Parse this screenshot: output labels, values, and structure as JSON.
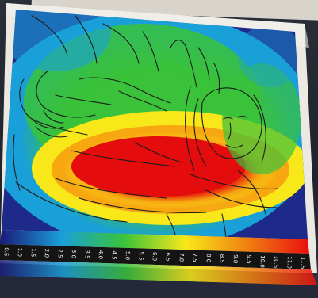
{
  "image": {
    "subject": "thermal-heatmap-photo",
    "colors": {
      "hot": "#e81010",
      "warm": "#f8e81a",
      "mid": "#3ac23a",
      "cool": "#1aa0d8",
      "cold": "#1e2a8a",
      "paper": "#ece9e2",
      "line": "#1b1b1b"
    }
  },
  "scale": {
    "ticks": [
      "0.5",
      "1.0",
      "1.5",
      "2.0",
      "2.5",
      "3.0",
      "3.5",
      "4.0",
      "4.5",
      "5.0",
      "5.5",
      "6.0",
      "6.5",
      "7.0",
      "7.5",
      "8.0",
      "8.5",
      "9.0",
      "9.5",
      "10.0",
      "10.5",
      "11.0",
      "11.5"
    ]
  }
}
